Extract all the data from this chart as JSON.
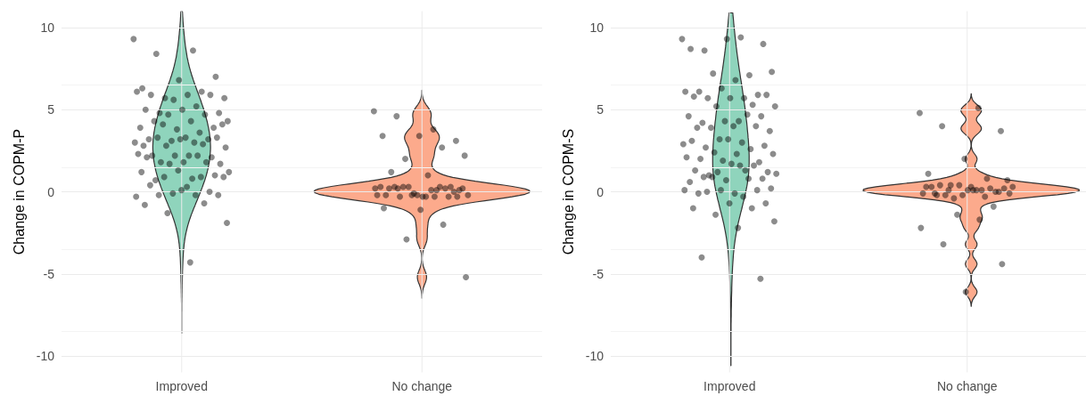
{
  "chart_data": [
    {
      "type": "scatter",
      "categories": [
        "Improved",
        "No change"
      ],
      "colors": [
        "#8fd4bc",
        "#fcaa8c"
      ],
      "ylabel": "Change in COPM-P",
      "ylim": [
        -11,
        11
      ],
      "yticks": [
        -10,
        -5,
        0,
        5,
        10
      ],
      "grid": true,
      "marker": "circle",
      "series": [
        {
          "color": "#000000",
          "x": [
            "Improved",
            "Improved",
            "Improved",
            "Improved",
            "Improved",
            "Improved",
            "Improved",
            "Improved",
            "Improved",
            "Improved",
            "Improved",
            "Improved",
            "Improved",
            "Improved",
            "Improved",
            "Improved",
            "Improved",
            "Improved",
            "Improved",
            "Improved",
            "Improved",
            "Improved",
            "Improved",
            "Improved",
            "Improved",
            "Improved",
            "Improved",
            "Improved",
            "Improved",
            "Improved",
            "Improved",
            "Improved",
            "Improved",
            "Improved",
            "Improved",
            "Improved",
            "Improved",
            "Improved",
            "Improved",
            "Improved",
            "Improved",
            "Improved",
            "Improved",
            "Improved",
            "Improved",
            "Improved",
            "Improved",
            "Improved",
            "Improved",
            "Improved",
            "Improved",
            "Improved",
            "Improved",
            "Improved",
            "Improved",
            "Improved",
            "Improved",
            "Improved",
            "Improved",
            "Improved",
            "Improved",
            "Improved",
            "Improved",
            "Improved",
            "Improved",
            "Improved",
            "Improved",
            "Improved",
            "Improved",
            "Improved",
            "Improved",
            "Improved",
            "Improved",
            "Improved",
            "Improved",
            "Improved",
            "Improved",
            "Improved",
            "No change",
            "No change",
            "No change",
            "No change",
            "No change",
            "No change",
            "No change",
            "No change",
            "No change",
            "No change",
            "No change",
            "No change",
            "No change",
            "No change",
            "No change",
            "No change",
            "No change",
            "No change",
            "No change",
            "No change",
            "No change",
            "No change",
            "No change",
            "No change",
            "No change",
            "No change",
            "No change",
            "No change",
            "No change",
            "No change",
            "No change",
            "No change",
            "No change",
            "No change",
            "No change",
            "No change",
            "No change",
            "No change",
            "No change",
            "No change",
            "No change",
            "No change",
            "No change"
          ],
          "values": [
            9.3,
            8.6,
            8.4,
            7.0,
            6.8,
            6.3,
            6.1,
            5.7,
            5.7,
            5.9,
            5.9,
            5.9,
            5.6,
            6.1,
            5.2,
            4.8,
            4.8,
            5.0,
            5.0,
            4.7,
            4.7,
            4.3,
            4.3,
            4.3,
            3.9,
            3.8,
            3.9,
            3.6,
            4.1,
            4.1,
            3.3,
            3.2,
            3.2,
            3.1,
            3.0,
            3.0,
            3.3,
            3.3,
            3.2,
            2.8,
            2.9,
            2.8,
            2.7,
            2.2,
            2.2,
            2.1,
            2.2,
            2.3,
            2.2,
            1.8,
            1.7,
            1.8,
            2.1,
            1.8,
            1.7,
            1.2,
            0.8,
            0.7,
            1.0,
            1.3,
            1.2,
            0.9,
            0.9,
            0.9,
            0.3,
            0.4,
            0.0,
            -0.1,
            -0.3,
            -0.2,
            -0.2,
            -0.2,
            0.1,
            -0.8,
            -0.7,
            -1.3,
            -1.9,
            -4.3,
            4.9,
            3.8,
            4.6,
            3.1,
            3.4,
            3.4,
            2.7,
            2.0,
            2.2,
            1.0,
            1.2,
            0.3,
            -0.1,
            -0.2,
            0.1,
            -0.3,
            0.1,
            -0.3,
            -0.2,
            0.2,
            0.3,
            -0.2,
            0.1,
            0.3,
            0.0,
            -0.2,
            0.3,
            0.3,
            0.3,
            0.2,
            -0.3,
            0.2,
            -0.3,
            -0.2,
            0.2,
            -0.3,
            0.2,
            -0.3,
            -1.1,
            -1.0,
            -2.0,
            -2.9,
            -5.2
          ]
        }
      ]
    },
    {
      "type": "scatter",
      "categories": [
        "Improved",
        "No change"
      ],
      "colors": [
        "#8fd4bc",
        "#fcaa8c"
      ],
      "ylabel": "Change in COPM-S",
      "ylim": [
        -11,
        11
      ],
      "yticks": [
        -10,
        -5,
        0,
        5,
        10
      ],
      "grid": true,
      "marker": "circle",
      "series": [
        {
          "color": "#000000",
          "x": [
            "Improved",
            "Improved",
            "Improved",
            "Improved",
            "Improved",
            "Improved",
            "Improved",
            "Improved",
            "Improved",
            "Improved",
            "Improved",
            "Improved",
            "Improved",
            "Improved",
            "Improved",
            "Improved",
            "Improved",
            "Improved",
            "Improved",
            "Improved",
            "Improved",
            "Improved",
            "Improved",
            "Improved",
            "Improved",
            "Improved",
            "Improved",
            "Improved",
            "Improved",
            "Improved",
            "Improved",
            "Improved",
            "Improved",
            "Improved",
            "Improved",
            "Improved",
            "Improved",
            "Improved",
            "Improved",
            "Improved",
            "Improved",
            "Improved",
            "Improved",
            "Improved",
            "Improved",
            "Improved",
            "Improved",
            "Improved",
            "Improved",
            "Improved",
            "Improved",
            "Improved",
            "Improved",
            "Improved",
            "Improved",
            "Improved",
            "Improved",
            "Improved",
            "Improved",
            "Improved",
            "Improved",
            "Improved",
            "Improved",
            "Improved",
            "Improved",
            "Improved",
            "Improved",
            "Improved",
            "Improved",
            "Improved",
            "Improved",
            "Improved",
            "Improved",
            "Improved",
            "Improved",
            "Improved",
            "Improved",
            "Improved",
            "Improved",
            "Improved",
            "No change",
            "No change",
            "No change",
            "No change",
            "No change",
            "No change",
            "No change",
            "No change",
            "No change",
            "No change",
            "No change",
            "No change",
            "No change",
            "No change",
            "No change",
            "No change",
            "No change",
            "No change",
            "No change",
            "No change",
            "No change",
            "No change",
            "No change",
            "No change",
            "No change",
            "No change",
            "No change",
            "No change",
            "No change",
            "No change",
            "No change",
            "No change",
            "No change",
            "No change",
            "No change",
            "No change",
            "No change",
            "No change",
            "No change"
          ],
          "values": [
            9.3,
            9.4,
            8.6,
            9.0,
            9.3,
            8.7,
            7.1,
            7.2,
            7.3,
            6.8,
            6.1,
            5.9,
            6.3,
            6.1,
            5.7,
            5.7,
            5.9,
            5.7,
            5.8,
            5.3,
            5.2,
            5.2,
            4.3,
            4.2,
            4.6,
            4.3,
            4.6,
            4.7,
            3.9,
            3.7,
            4.0,
            3.9,
            4.0,
            3.2,
            2.9,
            3.0,
            2.7,
            2.8,
            3.2,
            3.1,
            2.6,
            2.4,
            2.3,
            2.3,
            2.0,
            1.8,
            1.9,
            2.1,
            1.3,
            1.0,
            1.2,
            1.7,
            1.3,
            1.6,
            1.2,
            1.1,
            1.6,
            0.9,
            0.8,
            0.7,
            0.6,
            0.8,
            0.9,
            0.2,
            -0.1,
            -0.1,
            0.1,
            0.1,
            0.1,
            -0.3,
            0.0,
            -0.7,
            -0.7,
            -1.0,
            -1.0,
            -1.4,
            -1.8,
            -2.2,
            -4.0,
            -5.3,
            4.8,
            5.1,
            4.0,
            3.7,
            2.0,
            1.1,
            0.8,
            0.4,
            -0.1,
            0.1,
            -0.2,
            0.0,
            0.4,
            -0.1,
            0.1,
            -0.2,
            0.2,
            0.1,
            0.3,
            0.2,
            -0.4,
            0.3,
            0.1,
            0.4,
            0.0,
            -0.2,
            0.3,
            -0.3,
            0.1,
            0.7,
            0.3,
            -0.1,
            -0.9,
            -1.4,
            -2.2,
            -1.7,
            -3.2,
            -4.4,
            -6.1
          ]
        }
      ]
    }
  ]
}
